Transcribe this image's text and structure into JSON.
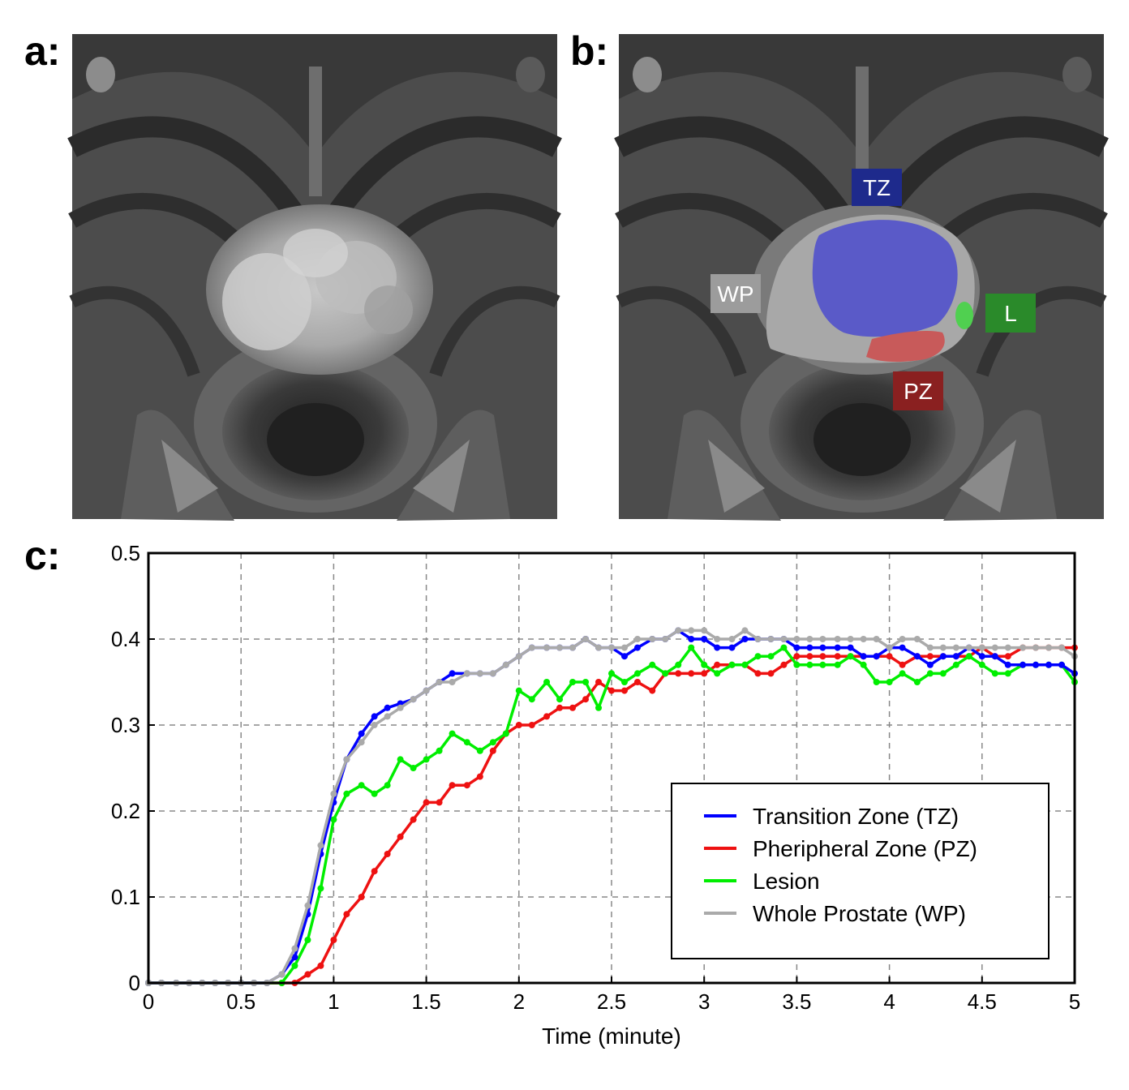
{
  "panels": {
    "a": {
      "label": "a:"
    },
    "b": {
      "label": "b:",
      "regions": [
        {
          "key": "TZ",
          "label": "TZ",
          "color": "#1e2a8c"
        },
        {
          "key": "WP",
          "label": "WP",
          "color": "#9c9c9c"
        },
        {
          "key": "L",
          "label": "L",
          "color": "#2a8a2a"
        },
        {
          "key": "PZ",
          "label": "PZ",
          "color": "#8a2020"
        }
      ],
      "overlay_colors": {
        "wp": "#a8a8a8",
        "tz": "#5a5ac8",
        "pz": "#c85a5a",
        "lesion": "#50d050"
      }
    },
    "c": {
      "label": "c:"
    }
  },
  "chart_data": {
    "type": "line",
    "title": "",
    "xlabel": "Time (minute)",
    "ylabel": "",
    "xlim": [
      0,
      5
    ],
    "ylim": [
      0,
      0.5
    ],
    "xticks": [
      0,
      0.5,
      1,
      1.5,
      2,
      2.5,
      3,
      3.5,
      4,
      4.5,
      5
    ],
    "xtick_labels": [
      "0",
      "0.5",
      "1",
      "1.5",
      "2",
      "2.5",
      "3",
      "3.5",
      "4",
      "4.5",
      "5"
    ],
    "yticks": [
      0,
      0.1,
      0.2,
      0.3,
      0.4,
      0.5
    ],
    "ytick_labels": [
      "0",
      "0.1",
      "0.2",
      "0.3",
      "0.4",
      "0.5"
    ],
    "grid": true,
    "legend_position": "bottom-right",
    "series": [
      {
        "name": "Transition Zone (TZ)",
        "color": "#0000ff",
        "x": [
          0,
          0.07,
          0.15,
          0.22,
          0.29,
          0.36,
          0.43,
          0.5,
          0.57,
          0.64,
          0.72,
          0.79,
          0.86,
          0.93,
          1.0,
          1.07,
          1.15,
          1.22,
          1.29,
          1.36,
          1.43,
          1.5,
          1.57,
          1.64,
          1.72,
          1.79,
          1.86,
          1.93,
          2.0,
          2.07,
          2.15,
          2.22,
          2.29,
          2.36,
          2.43,
          2.5,
          2.57,
          2.64,
          2.72,
          2.79,
          2.86,
          2.93,
          3.0,
          3.07,
          3.15,
          3.22,
          3.29,
          3.36,
          3.43,
          3.5,
          3.57,
          3.64,
          3.72,
          3.79,
          3.86,
          3.93,
          4.0,
          4.07,
          4.15,
          4.22,
          4.29,
          4.36,
          4.43,
          4.5,
          4.57,
          4.64,
          4.72,
          4.79,
          4.86,
          4.93,
          5.0
        ],
        "y": [
          0,
          0,
          0,
          0,
          0,
          0,
          0,
          0,
          0,
          0,
          0.01,
          0.03,
          0.08,
          0.15,
          0.21,
          0.26,
          0.29,
          0.31,
          0.32,
          0.325,
          0.33,
          0.34,
          0.35,
          0.36,
          0.36,
          0.36,
          0.36,
          0.37,
          0.38,
          0.39,
          0.39,
          0.39,
          0.39,
          0.4,
          0.39,
          0.39,
          0.38,
          0.39,
          0.4,
          0.4,
          0.41,
          0.4,
          0.4,
          0.39,
          0.39,
          0.4,
          0.4,
          0.4,
          0.4,
          0.39,
          0.39,
          0.39,
          0.39,
          0.39,
          0.38,
          0.38,
          0.39,
          0.39,
          0.38,
          0.37,
          0.38,
          0.38,
          0.39,
          0.38,
          0.38,
          0.37,
          0.37,
          0.37,
          0.37,
          0.37,
          0.36
        ]
      },
      {
        "name": "Pheripheral Zone (PZ)",
        "color": "#ee1111",
        "x": [
          0,
          0.07,
          0.15,
          0.22,
          0.29,
          0.36,
          0.43,
          0.5,
          0.57,
          0.64,
          0.72,
          0.79,
          0.86,
          0.93,
          1.0,
          1.07,
          1.15,
          1.22,
          1.29,
          1.36,
          1.43,
          1.5,
          1.57,
          1.64,
          1.72,
          1.79,
          1.86,
          1.93,
          2.0,
          2.07,
          2.15,
          2.22,
          2.29,
          2.36,
          2.43,
          2.5,
          2.57,
          2.64,
          2.72,
          2.79,
          2.86,
          2.93,
          3.0,
          3.07,
          3.15,
          3.22,
          3.29,
          3.36,
          3.43,
          3.5,
          3.57,
          3.64,
          3.72,
          3.79,
          3.86,
          3.93,
          4.0,
          4.07,
          4.15,
          4.22,
          4.29,
          4.36,
          4.43,
          4.5,
          4.57,
          4.64,
          4.72,
          4.79,
          4.86,
          4.93,
          5.0
        ],
        "y": [
          0,
          0,
          0,
          0,
          0,
          0,
          0,
          0,
          0,
          0,
          0,
          0,
          0.01,
          0.02,
          0.05,
          0.08,
          0.1,
          0.13,
          0.15,
          0.17,
          0.19,
          0.21,
          0.21,
          0.23,
          0.23,
          0.24,
          0.27,
          0.29,
          0.3,
          0.3,
          0.31,
          0.32,
          0.32,
          0.33,
          0.35,
          0.34,
          0.34,
          0.35,
          0.34,
          0.36,
          0.36,
          0.36,
          0.36,
          0.37,
          0.37,
          0.37,
          0.36,
          0.36,
          0.37,
          0.38,
          0.38,
          0.38,
          0.38,
          0.38,
          0.38,
          0.38,
          0.38,
          0.37,
          0.38,
          0.38,
          0.38,
          0.38,
          0.38,
          0.39,
          0.38,
          0.38,
          0.39,
          0.39,
          0.39,
          0.39,
          0.39
        ]
      },
      {
        "name": "Lesion",
        "color": "#00ee00",
        "x": [
          0,
          0.07,
          0.15,
          0.22,
          0.29,
          0.36,
          0.43,
          0.5,
          0.57,
          0.64,
          0.72,
          0.79,
          0.86,
          0.93,
          1.0,
          1.07,
          1.15,
          1.22,
          1.29,
          1.36,
          1.43,
          1.5,
          1.57,
          1.64,
          1.72,
          1.79,
          1.86,
          1.93,
          2.0,
          2.07,
          2.15,
          2.22,
          2.29,
          2.36,
          2.43,
          2.5,
          2.57,
          2.64,
          2.72,
          2.79,
          2.86,
          2.93,
          3.0,
          3.07,
          3.15,
          3.22,
          3.29,
          3.36,
          3.43,
          3.5,
          3.57,
          3.64,
          3.72,
          3.79,
          3.86,
          3.93,
          4.0,
          4.07,
          4.15,
          4.22,
          4.29,
          4.36,
          4.43,
          4.5,
          4.57,
          4.64,
          4.72,
          4.79,
          4.86,
          4.93,
          5.0
        ],
        "y": [
          0,
          0,
          0,
          0,
          0,
          0,
          0,
          0,
          0,
          0,
          0,
          0.02,
          0.05,
          0.11,
          0.19,
          0.22,
          0.23,
          0.22,
          0.23,
          0.26,
          0.25,
          0.26,
          0.27,
          0.29,
          0.28,
          0.27,
          0.28,
          0.29,
          0.34,
          0.33,
          0.35,
          0.33,
          0.35,
          0.35,
          0.32,
          0.36,
          0.35,
          0.36,
          0.37,
          0.36,
          0.37,
          0.39,
          0.37,
          0.36,
          0.37,
          0.37,
          0.38,
          0.38,
          0.39,
          0.37,
          0.37,
          0.37,
          0.37,
          0.38,
          0.37,
          0.35,
          0.35,
          0.36,
          0.35,
          0.36,
          0.36,
          0.37,
          0.38,
          0.37,
          0.36,
          0.36,
          0.37,
          0.37,
          0.37,
          0.37,
          0.35
        ]
      },
      {
        "name": "Whole Prostate (WP)",
        "color": "#aaaaaa",
        "x": [
          0,
          0.07,
          0.15,
          0.22,
          0.29,
          0.36,
          0.43,
          0.5,
          0.57,
          0.64,
          0.72,
          0.79,
          0.86,
          0.93,
          1.0,
          1.07,
          1.15,
          1.22,
          1.29,
          1.36,
          1.43,
          1.5,
          1.57,
          1.64,
          1.72,
          1.79,
          1.86,
          1.93,
          2.0,
          2.07,
          2.15,
          2.22,
          2.29,
          2.36,
          2.43,
          2.5,
          2.57,
          2.64,
          2.72,
          2.79,
          2.86,
          2.93,
          3.0,
          3.07,
          3.15,
          3.22,
          3.29,
          3.36,
          3.43,
          3.5,
          3.57,
          3.64,
          3.72,
          3.79,
          3.86,
          3.93,
          4.0,
          4.07,
          4.15,
          4.22,
          4.29,
          4.36,
          4.43,
          4.5,
          4.57,
          4.64,
          4.72,
          4.79,
          4.86,
          4.93,
          5.0
        ],
        "y": [
          0,
          0,
          0,
          0,
          0,
          0,
          0,
          0,
          0,
          0,
          0.01,
          0.04,
          0.09,
          0.16,
          0.22,
          0.26,
          0.28,
          0.3,
          0.31,
          0.32,
          0.33,
          0.34,
          0.35,
          0.35,
          0.36,
          0.36,
          0.36,
          0.37,
          0.38,
          0.39,
          0.39,
          0.39,
          0.39,
          0.4,
          0.39,
          0.39,
          0.39,
          0.4,
          0.4,
          0.4,
          0.41,
          0.41,
          0.41,
          0.4,
          0.4,
          0.41,
          0.4,
          0.4,
          0.4,
          0.4,
          0.4,
          0.4,
          0.4,
          0.4,
          0.4,
          0.4,
          0.39,
          0.4,
          0.4,
          0.39,
          0.39,
          0.39,
          0.39,
          0.39,
          0.39,
          0.39,
          0.39,
          0.39,
          0.39,
          0.39,
          0.38
        ]
      }
    ]
  }
}
